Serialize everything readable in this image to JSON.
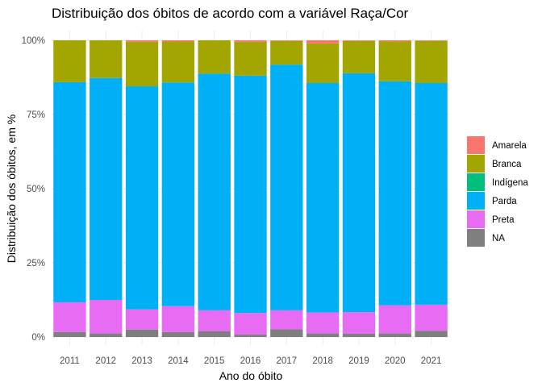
{
  "chart_data": {
    "type": "bar",
    "stacked": true,
    "normalized": true,
    "title": "Distribuição dos óbitos de acordo com a variável Raça/Cor",
    "xlabel": "Ano do óbito",
    "ylabel": "Distribuição dos óbitos, em %",
    "ylim": [
      0,
      1
    ],
    "yticks": [
      "0%",
      "25%",
      "50%",
      "75%",
      "100%"
    ],
    "grid": true,
    "legend_position": "right",
    "categories": [
      "2011",
      "2012",
      "2013",
      "2014",
      "2015",
      "2016",
      "2017",
      "2018",
      "2019",
      "2020",
      "2021"
    ],
    "series": [
      {
        "name": "Amarela",
        "color": "#F8766D",
        "values": [
          0.0,
          0.0,
          0.005,
          0.004,
          0.0,
          0.005,
          0.002,
          0.01,
          0.002,
          0.003,
          0.002
        ]
      },
      {
        "name": "Branca",
        "color": "#A3A500",
        "values": [
          0.141,
          0.127,
          0.15,
          0.138,
          0.112,
          0.114,
          0.08,
          0.134,
          0.109,
          0.135,
          0.142
        ]
      },
      {
        "name": "Indígena",
        "color": "#00BF7D",
        "values": [
          0.0,
          0.0,
          0.0,
          0.0,
          0.0,
          0.0,
          0.0,
          0.0,
          0.0,
          0.0,
          0.0
        ]
      },
      {
        "name": "Parda",
        "color": "#00B0F6",
        "values": [
          0.742,
          0.748,
          0.752,
          0.754,
          0.798,
          0.8,
          0.828,
          0.773,
          0.805,
          0.755,
          0.747
        ]
      },
      {
        "name": "Preta",
        "color": "#E76BF3",
        "values": [
          0.1,
          0.113,
          0.068,
          0.087,
          0.071,
          0.073,
          0.064,
          0.071,
          0.073,
          0.095,
          0.088
        ]
      },
      {
        "name": "NA",
        "color": "#7F7F7F",
        "values": [
          0.017,
          0.012,
          0.025,
          0.017,
          0.019,
          0.008,
          0.026,
          0.012,
          0.011,
          0.012,
          0.021
        ]
      }
    ]
  }
}
